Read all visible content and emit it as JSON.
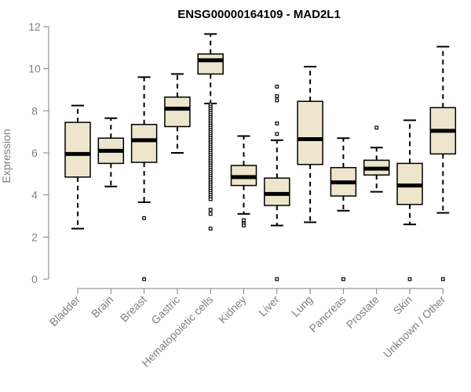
{
  "chart_data": {
    "type": "boxplot",
    "title": "ENSG00000164109 - MAD2L1",
    "xlabel": "",
    "ylabel": "Expression",
    "ylim": [
      0,
      12
    ],
    "yticks": [
      0,
      2,
      4,
      6,
      8,
      10,
      12
    ],
    "grid": false,
    "legend": "none",
    "colors": {
      "box_fill": "#ede5cc",
      "box_stroke": "#000000",
      "axis": "#808080",
      "label": "#808080",
      "title": "#000000"
    },
    "categories": [
      "Bladder",
      "Brain",
      "Breast",
      "Gastric",
      "Hematopoietic cells",
      "Kidney",
      "Liver",
      "Lung",
      "Pancreas",
      "Prostate",
      "Skin",
      "Unknown / Other"
    ],
    "series": [
      {
        "category": "Bladder",
        "whisker_low": 2.4,
        "q1": 4.85,
        "median": 5.95,
        "q3": 7.45,
        "whisker_high": 8.25,
        "outliers": []
      },
      {
        "category": "Brain",
        "whisker_low": 4.4,
        "q1": 5.5,
        "median": 6.1,
        "q3": 6.7,
        "whisker_high": 7.65,
        "outliers": []
      },
      {
        "category": "Breast",
        "whisker_low": 3.65,
        "q1": 5.55,
        "median": 6.6,
        "q3": 7.35,
        "whisker_high": 9.6,
        "outliers": [
          2.9,
          0.0
        ]
      },
      {
        "category": "Gastric",
        "whisker_low": 6.0,
        "q1": 7.25,
        "median": 8.1,
        "q3": 8.65,
        "whisker_high": 9.75,
        "outliers": []
      },
      {
        "category": "Hematopoietic cells",
        "whisker_low": 8.35,
        "q1": 9.75,
        "median": 10.4,
        "q3": 10.7,
        "whisker_high": 11.65,
        "outliers": [
          8.3,
          8.2,
          8.1,
          8.0,
          7.9,
          7.8,
          7.7,
          7.6,
          7.5,
          7.4,
          7.3,
          7.2,
          7.1,
          7.0,
          6.9,
          6.8,
          6.7,
          6.6,
          6.5,
          6.4,
          6.3,
          6.2,
          6.1,
          6.0,
          5.9,
          5.8,
          5.7,
          5.6,
          5.5,
          5.4,
          5.3,
          5.2,
          5.1,
          5.0,
          4.9,
          4.8,
          4.7,
          4.6,
          4.5,
          4.4,
          4.3,
          4.2,
          4.1,
          4.0,
          3.9,
          3.8,
          3.3,
          3.1,
          2.4
        ]
      },
      {
        "category": "Kidney",
        "whisker_low": 3.1,
        "q1": 4.45,
        "median": 4.85,
        "q3": 5.4,
        "whisker_high": 6.8,
        "outliers": [
          2.8,
          2.65,
          2.55
        ]
      },
      {
        "category": "Liver",
        "whisker_low": 2.55,
        "q1": 3.5,
        "median": 4.05,
        "q3": 4.8,
        "whisker_high": 6.6,
        "outliers": [
          9.15,
          8.7,
          8.5,
          7.4,
          6.9,
          0.0
        ]
      },
      {
        "category": "Lung",
        "whisker_low": 2.7,
        "q1": 5.45,
        "median": 6.65,
        "q3": 8.45,
        "whisker_high": 10.1,
        "outliers": []
      },
      {
        "category": "Pancreas",
        "whisker_low": 3.25,
        "q1": 3.95,
        "median": 4.6,
        "q3": 5.3,
        "whisker_high": 6.7,
        "outliers": [
          0.0
        ]
      },
      {
        "category": "Prostate",
        "whisker_low": 4.15,
        "q1": 4.95,
        "median": 5.25,
        "q3": 5.65,
        "whisker_high": 6.25,
        "outliers": [
          7.2
        ]
      },
      {
        "category": "Skin",
        "whisker_low": 2.6,
        "q1": 3.55,
        "median": 4.45,
        "q3": 5.5,
        "whisker_high": 7.55,
        "outliers": [
          0.0
        ]
      },
      {
        "category": "Unknown / Other",
        "whisker_low": 3.15,
        "q1": 5.95,
        "median": 7.05,
        "q3": 8.15,
        "whisker_high": 11.05,
        "outliers": [
          0.0
        ]
      }
    ]
  }
}
